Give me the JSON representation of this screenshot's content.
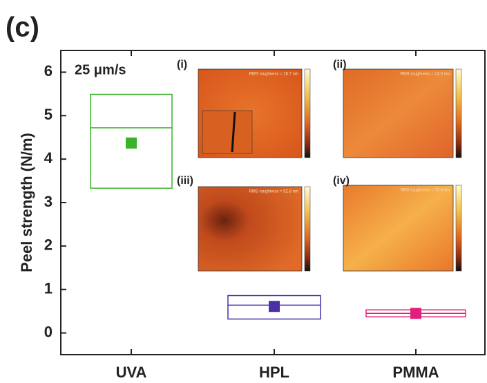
{
  "panel_label": "(c)",
  "chart_data": {
    "type": "box",
    "annotation": "25 μm/s",
    "ylabel": "Peel strength (N/m)",
    "categories": [
      "UVA",
      "HPL",
      "PMMA"
    ],
    "q1": [
      3.33,
      0.32,
      0.37
    ],
    "median": [
      4.72,
      0.64,
      0.45
    ],
    "q3": [
      5.49,
      0.86,
      0.53
    ],
    "mean": [
      4.37,
      0.61,
      0.45
    ],
    "colors": [
      "#3cb22c",
      "#4a2fa6",
      "#e0207a"
    ],
    "ylim": [
      -0.5,
      6.5
    ],
    "yticks": [
      0,
      1,
      2,
      3,
      4,
      5,
      6
    ]
  },
  "insets": [
    {
      "label": "(i)",
      "note": "RMS roughness = 16.7 nm"
    },
    {
      "label": "(ii)",
      "note": "RMS roughness = 14.5 nm"
    },
    {
      "label": "(iii)",
      "note": "RMS roughness = 52.8 nm"
    },
    {
      "label": "(iv)",
      "note": "RMS roughness = 73.4 nm"
    }
  ]
}
